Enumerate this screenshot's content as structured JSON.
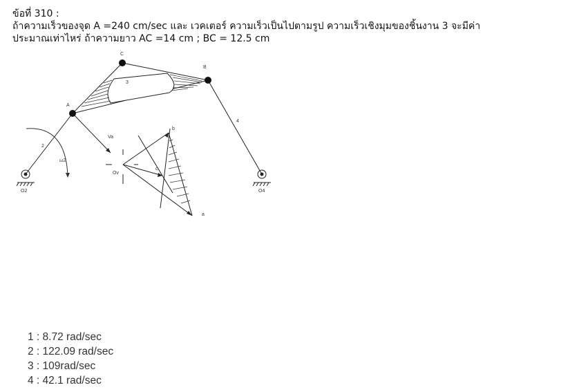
{
  "question": {
    "title": "ข้อที่ 310 :",
    "line1": "ถ้าความเร็วของจุด A =240 cm/sec และ เวคเตอร์ ความเร็วเป็นไปตามรูป ความเร็วเชิงมุมของชิ้นงาน 3 จะมีค่า",
    "line2": "ประมาณเท่าไหร่ ถ้าความยาว AC =14 cm ; BC = 12.5 cm"
  },
  "figure": {
    "labels": {
      "A": "A",
      "B": "B",
      "C": "C",
      "link2": "2",
      "link3": "3",
      "link4": "4",
      "omega2": "ω2",
      "Va": "Va",
      "Ov": "Ov",
      "a": "a",
      "b": "b",
      "c": "c",
      "O2": "O2",
      "O4": "O4"
    }
  },
  "choices": [
    {
      "number": "1",
      "text": "8.72 rad/sec"
    },
    {
      "number": "2",
      "text": "122.09 rad/sec"
    },
    {
      "number": "3",
      "text": "109rad/sec"
    },
    {
      "number": "4",
      "text": "42.1 rad/sec"
    }
  ]
}
